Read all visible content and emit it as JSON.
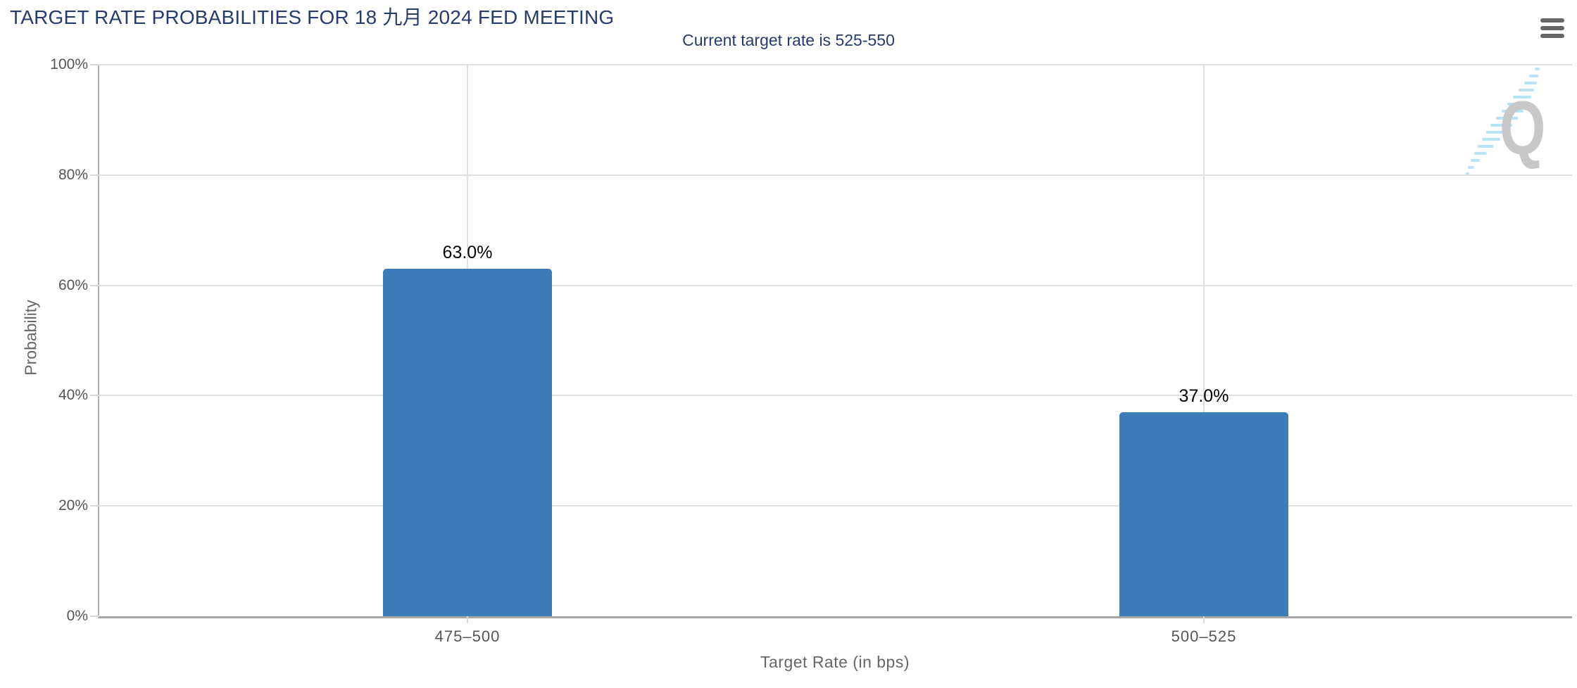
{
  "header": {
    "menu_tooltip": "Chart context menu"
  },
  "chart_data": {
    "type": "bar",
    "title": "TARGET RATE PROBABILITIES FOR 18 九月 2024 FED MEETING",
    "subtitle": "Current target rate is 525-550",
    "categories": [
      "475–500",
      "500–525"
    ],
    "values": [
      63.0,
      37.0
    ],
    "value_labels": [
      "63.0%",
      "37.0%"
    ],
    "xlabel": "Target Rate (in bps)",
    "ylabel": "Probability",
    "ylim": [
      0,
      100
    ],
    "yticks": [
      "0%",
      "20%",
      "40%",
      "60%",
      "80%",
      "100%"
    ],
    "grid": true,
    "legend": "none",
    "watermark_letter": "Q"
  },
  "colors": {
    "title": "#263c6e",
    "subtitle": "#263c6e",
    "bar": "#3d7cb8",
    "axis_text": "#555555",
    "axis_title": "#666666",
    "gridline": "#e0e0e0",
    "menu_icon": "#666666",
    "watermark_q": "#c8c8c8",
    "watermark_swoosh": "#b8e2f5"
  }
}
